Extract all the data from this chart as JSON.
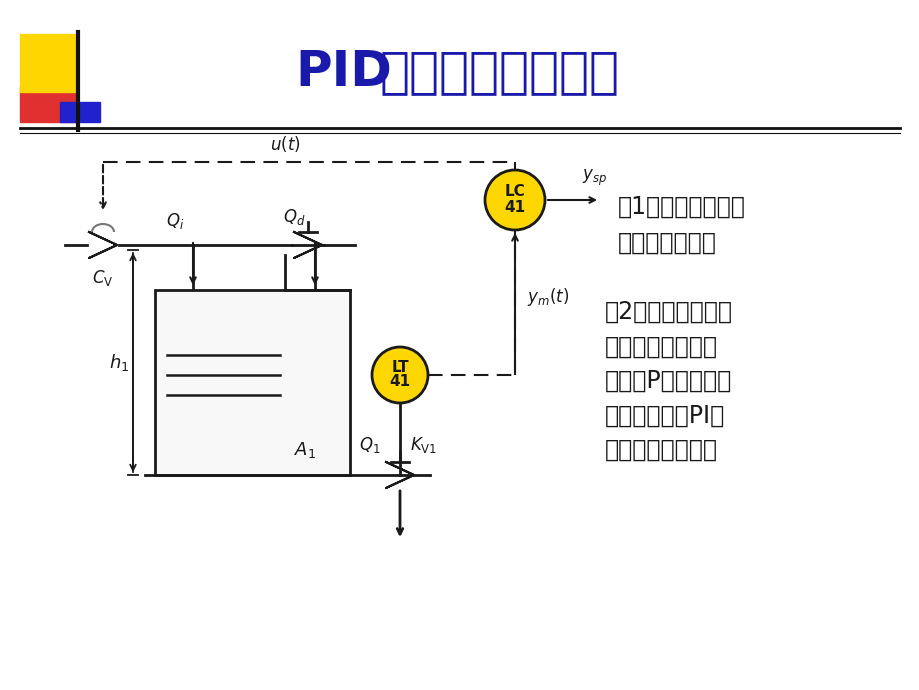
{
  "title_pid": "PID",
  "title_cn": "控制回路稳态分析",
  "bg_color": "#ffffff",
  "title_color": "#1a1aaa",
  "title_fontsize": 36,
  "text1": "（1）该被控过程是\n否为稳定对象？",
  "text2": "（2）对于外部干扰\n，该控制系统为什\n么采用P控制器会产\n生余差而采用PI控\n制器能消除余差？",
  "yellow": "#FFD700",
  "gray": "#aaaaaa",
  "dark": "#1a1a1a",
  "text_fontsize": 17,
  "deco_yellow": "#FFD700",
  "deco_red": "#E03030",
  "deco_blue": "#2222CC"
}
